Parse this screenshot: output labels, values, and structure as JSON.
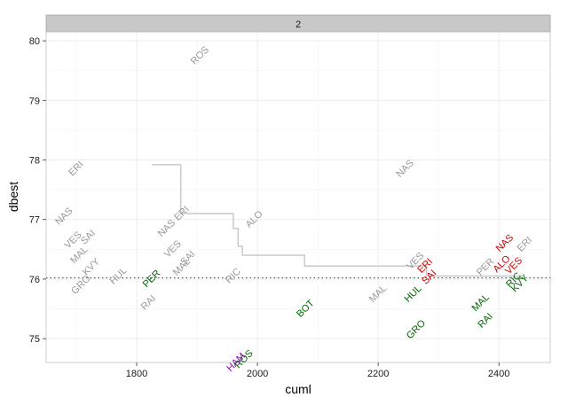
{
  "chart_data": {
    "type": "scatter",
    "facet_label": "2",
    "xlabel": "cuml",
    "ylabel": "dbest",
    "xlim": [
      1650,
      2485
    ],
    "ylim": [
      74.6,
      80.15
    ],
    "x_ticks": [
      1800,
      2000,
      2200,
      2400
    ],
    "y_ticks": [
      75,
      76,
      77,
      78,
      79,
      80
    ],
    "grid": true,
    "reference_line": {
      "y": 76.02,
      "style": "dotted"
    },
    "colors": {
      "grey": "#999999",
      "red": "#cc0000",
      "green": "#006600",
      "purple": "#9900cc",
      "step_line": "#c9c9c9"
    },
    "points": [
      {
        "label": "ROS",
        "x": 1905,
        "y": 79.75,
        "color": "grey"
      },
      {
        "label": "ERI",
        "x": 1700,
        "y": 77.85,
        "color": "grey"
      },
      {
        "label": "NAS",
        "x": 1680,
        "y": 77.05,
        "color": "grey"
      },
      {
        "label": "VES",
        "x": 1695,
        "y": 76.65,
        "color": "grey"
      },
      {
        "label": "SAI",
        "x": 1720,
        "y": 76.7,
        "color": "grey"
      },
      {
        "label": "MAL",
        "x": 1705,
        "y": 76.4,
        "color": "grey"
      },
      {
        "label": "KVY",
        "x": 1725,
        "y": 76.2,
        "color": "grey"
      },
      {
        "label": "GRO",
        "x": 1708,
        "y": 75.9,
        "color": "grey"
      },
      {
        "label": "HUL",
        "x": 1770,
        "y": 76.05,
        "color": "grey"
      },
      {
        "label": "NAS",
        "x": 1850,
        "y": 76.85,
        "color": "grey"
      },
      {
        "label": "ERI",
        "x": 1875,
        "y": 77.1,
        "color": "grey"
      },
      {
        "label": "ALO",
        "x": 1995,
        "y": 77.0,
        "color": "grey"
      },
      {
        "label": "VES",
        "x": 1860,
        "y": 76.5,
        "color": "grey"
      },
      {
        "label": "MAL",
        "x": 1875,
        "y": 76.2,
        "color": "grey"
      },
      {
        "label": "SAI",
        "x": 1885,
        "y": 76.35,
        "color": "grey"
      },
      {
        "label": "PER",
        "x": 1825,
        "y": 76.0,
        "color": "green"
      },
      {
        "label": "RAI",
        "x": 1820,
        "y": 75.6,
        "color": "grey"
      },
      {
        "label": "RIC",
        "x": 1960,
        "y": 76.05,
        "color": "grey"
      },
      {
        "label": "NAS",
        "x": 2245,
        "y": 77.85,
        "color": "grey"
      },
      {
        "label": "VES",
        "x": 2262,
        "y": 76.3,
        "color": "grey"
      },
      {
        "label": "MAL",
        "x": 2200,
        "y": 75.75,
        "color": "grey"
      },
      {
        "label": "HUL",
        "x": 2258,
        "y": 75.75,
        "color": "green"
      },
      {
        "label": "GRO",
        "x": 2263,
        "y": 75.15,
        "color": "green"
      },
      {
        "label": "BOT",
        "x": 2080,
        "y": 75.5,
        "color": "green"
      },
      {
        "label": "ERI",
        "x": 2278,
        "y": 76.22,
        "color": "red"
      },
      {
        "label": "SAI",
        "x": 2285,
        "y": 76.03,
        "color": "red"
      },
      {
        "label": "PER",
        "x": 2378,
        "y": 76.2,
        "color": "grey"
      },
      {
        "label": "MAL",
        "x": 2370,
        "y": 75.6,
        "color": "green"
      },
      {
        "label": "RAI",
        "x": 2378,
        "y": 75.3,
        "color": "green"
      },
      {
        "label": "NAS",
        "x": 2410,
        "y": 76.6,
        "color": "red"
      },
      {
        "label": "ALO",
        "x": 2405,
        "y": 76.25,
        "color": "red"
      },
      {
        "label": "VES",
        "x": 2425,
        "y": 76.22,
        "color": "red"
      },
      {
        "label": "ERI",
        "x": 2443,
        "y": 76.58,
        "color": "grey"
      },
      {
        "label": "RIC",
        "x": 2425,
        "y": 75.98,
        "color": "green"
      },
      {
        "label": "KVY",
        "x": 2435,
        "y": 75.92,
        "color": "green"
      },
      {
        "label": "HAM",
        "x": 1965,
        "y": 74.6,
        "color": "purple"
      },
      {
        "label": "ROS",
        "x": 1978,
        "y": 74.65,
        "color": "green"
      }
    ],
    "step_line": {
      "x": [
        1825,
        1873,
        1873,
        1960,
        1960,
        1968,
        1968,
        1975,
        1975,
        2078,
        2078,
        2280,
        2280,
        2440
      ],
      "y": [
        77.92,
        77.92,
        77.1,
        77.1,
        76.85,
        76.85,
        76.55,
        76.55,
        76.4,
        76.4,
        76.22,
        76.22,
        76.05,
        76.05
      ]
    }
  }
}
